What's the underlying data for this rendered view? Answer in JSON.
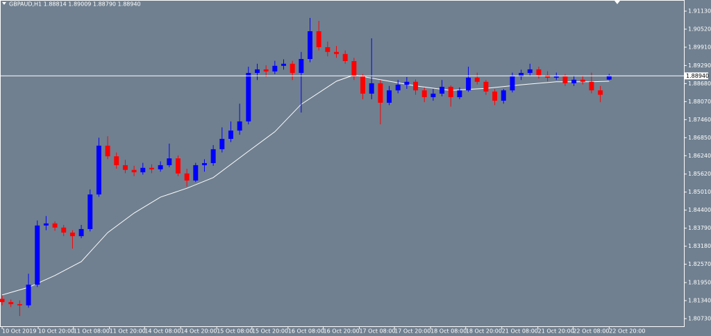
{
  "chart_data": {
    "type": "candlestick",
    "title": "GBPAUD,H1  1.88814 1.89009 1.88790 1.88940",
    "up_color": "#0000ff",
    "down_color": "#ff0000",
    "background": "#708090",
    "open": [
      1.814,
      1.8129,
      1.8122,
      1.8118,
      1.8188,
      1.8388,
      1.8395,
      1.8381,
      1.8364,
      1.8352,
      1.8376,
      1.8493,
      1.8658,
      1.8622,
      1.8592,
      1.8576,
      1.8568,
      1.8583,
      1.8578,
      1.8592,
      1.8615,
      1.8564,
      1.854,
      1.8592,
      1.8599,
      1.8646,
      1.8681,
      1.8709,
      1.874,
      1.8904,
      1.8916,
      1.8909,
      1.8928,
      1.8935,
      1.8904,
      1.8951,
      1.9045,
      1.8991,
      1.8975,
      1.8968,
      1.8944,
      1.8892,
      1.8834,
      1.8869,
      1.8803,
      1.8845,
      1.8864,
      1.8874,
      1.8845,
      1.8822,
      1.8834,
      1.8857,
      1.8822,
      1.8845,
      1.8888,
      1.8874,
      1.8841,
      1.881,
      1.8845,
      1.8892,
      1.8904,
      1.8916,
      1.8897,
      1.8888,
      1.8892,
      1.8869,
      1.8881,
      1.8874,
      1.8845,
      1.88814
    ],
    "high": [
      1.8152,
      1.8138,
      1.8135,
      1.8225,
      1.8405,
      1.842,
      1.8402,
      1.839,
      1.8372,
      1.839,
      1.851,
      1.8685,
      1.869,
      1.8635,
      1.861,
      1.859,
      1.86,
      1.8595,
      1.8605,
      1.8665,
      1.8625,
      1.858,
      1.86,
      1.8612,
      1.866,
      1.872,
      1.874,
      1.88,
      1.8925,
      1.8935,
      1.893,
      1.8945,
      1.895,
      1.8945,
      1.8975,
      1.909,
      1.908,
      1.901,
      1.8995,
      1.898,
      1.8955,
      1.89,
      1.9021,
      1.888,
      1.886,
      1.888,
      1.889,
      1.8882,
      1.8855,
      1.885,
      1.888,
      1.8862,
      1.8855,
      1.8925,
      1.8905,
      1.888,
      1.885,
      1.885,
      1.8905,
      1.8915,
      1.8935,
      1.8925,
      1.891,
      1.8905,
      1.89,
      1.8895,
      1.8895,
      1.8905,
      1.886,
      1.89009
    ],
    "low": [
      1.8118,
      1.8112,
      1.8082,
      1.811,
      1.818,
      1.8372,
      1.837,
      1.8352,
      1.831,
      1.8345,
      1.8368,
      1.8485,
      1.8612,
      1.858,
      1.8565,
      1.8555,
      1.856,
      1.8565,
      1.857,
      1.8585,
      1.8555,
      1.852,
      1.8535,
      1.857,
      1.859,
      1.8635,
      1.867,
      1.8695,
      1.873,
      1.888,
      1.889,
      1.89,
      1.8915,
      1.888,
      1.877,
      1.894,
      1.898,
      1.896,
      1.8955,
      1.8935,
      1.888,
      1.8815,
      1.8815,
      1.873,
      1.8795,
      1.8835,
      1.885,
      1.883,
      1.8805,
      1.881,
      1.8825,
      1.879,
      1.8815,
      1.884,
      1.8865,
      1.883,
      1.8795,
      1.88,
      1.8838,
      1.888,
      1.8895,
      1.8885,
      1.8875,
      1.888,
      1.886,
      1.886,
      1.8865,
      1.8835,
      1.8805,
      1.8879
    ],
    "close": [
      1.8129,
      1.8122,
      1.8118,
      1.8188,
      1.8388,
      1.8395,
      1.8381,
      1.8364,
      1.8352,
      1.8376,
      1.8493,
      1.8658,
      1.8622,
      1.8592,
      1.8576,
      1.8568,
      1.8583,
      1.8578,
      1.8592,
      1.8615,
      1.8564,
      1.854,
      1.8592,
      1.8599,
      1.8646,
      1.8681,
      1.8709,
      1.874,
      1.8904,
      1.8916,
      1.8909,
      1.8928,
      1.8935,
      1.8904,
      1.8951,
      1.9045,
      1.8991,
      1.8975,
      1.8968,
      1.8944,
      1.8892,
      1.8834,
      1.8869,
      1.8803,
      1.8845,
      1.8864,
      1.8874,
      1.8845,
      1.8822,
      1.8834,
      1.8857,
      1.8822,
      1.8845,
      1.8888,
      1.8874,
      1.8841,
      1.881,
      1.8845,
      1.8892,
      1.8904,
      1.8916,
      1.8897,
      1.8888,
      1.8892,
      1.8869,
      1.8881,
      1.8874,
      1.8845,
      1.883,
      1.8894
    ],
    "moving_average": {
      "color": "#ffffff",
      "x": [
        0,
        3,
        6,
        9,
        12,
        15,
        18,
        21,
        24,
        28,
        31,
        34,
        38,
        40,
        44,
        47,
        51,
        55,
        59,
        63,
        67,
        69
      ],
      "values": [
        1.8153,
        1.8179,
        1.8219,
        1.8266,
        1.8364,
        1.843,
        1.8484,
        1.8514,
        1.855,
        1.8639,
        1.8705,
        1.8798,
        1.8876,
        1.8897,
        1.8876,
        1.886,
        1.8845,
        1.8852,
        1.8864,
        1.8874,
        1.8874,
        1.8876
      ]
    },
    "last_price": {
      "value": 1.8894,
      "label": "1.88940"
    },
    "xlim": [
      -0.24,
      77.5
    ],
    "ylim": [
      1.80472,
      1.91506
    ],
    "yticks": [
      {
        "value": 1.9113,
        "label": "1.91130"
      },
      {
        "value": 1.9052,
        "label": "1.90520"
      },
      {
        "value": 1.8991,
        "label": "1.89910"
      },
      {
        "value": 1.8929,
        "label": "1.89290"
      },
      {
        "value": 1.8868,
        "label": "1.88680"
      },
      {
        "value": 1.8807,
        "label": "1.88070"
      },
      {
        "value": 1.8746,
        "label": "1.87460"
      },
      {
        "value": 1.8685,
        "label": "1.86850"
      },
      {
        "value": 1.8624,
        "label": "1.86240"
      },
      {
        "value": 1.8562,
        "label": "1.85620"
      },
      {
        "value": 1.8501,
        "label": "1.85010"
      },
      {
        "value": 1.844,
        "label": "1.84400"
      },
      {
        "value": 1.8379,
        "label": "1.83790"
      },
      {
        "value": 1.8318,
        "label": "1.83180"
      },
      {
        "value": 1.8257,
        "label": "1.82570"
      },
      {
        "value": 1.8195,
        "label": "1.81950"
      },
      {
        "value": 1.8134,
        "label": "1.81340"
      },
      {
        "value": 1.8073,
        "label": "1.80730"
      }
    ],
    "xticks": [
      {
        "value": 0,
        "label": "10 Oct 2019"
      },
      {
        "value": 4.1,
        "label": "10 Oct 20:00"
      },
      {
        "value": 8.1,
        "label": "11 Oct 08:00"
      },
      {
        "value": 12.2,
        "label": "11 Oct 20:00"
      },
      {
        "value": 16.2,
        "label": "14 Oct 08:00"
      },
      {
        "value": 20.3,
        "label": "14 Oct 20:00"
      },
      {
        "value": 24.4,
        "label": "15 Oct 08:00"
      },
      {
        "value": 28.4,
        "label": "15 Oct 20:00"
      },
      {
        "value": 32.5,
        "label": "16 Oct 08:00"
      },
      {
        "value": 36.5,
        "label": "16 Oct 20:00"
      },
      {
        "value": 40.6,
        "label": "17 Oct 08:00"
      },
      {
        "value": 44.6,
        "label": "17 Oct 20:00"
      },
      {
        "value": 48.7,
        "label": "18 Oct 08:00"
      },
      {
        "value": 52.7,
        "label": "18 Oct 20:00"
      },
      {
        "value": 56.8,
        "label": "21 Oct 08:00"
      },
      {
        "value": 60.9,
        "label": "21 Oct 20:00"
      },
      {
        "value": 64.9,
        "label": "22 Oct 08:00"
      },
      {
        "value": 69,
        "label": "22 Oct 20:00"
      }
    ]
  }
}
